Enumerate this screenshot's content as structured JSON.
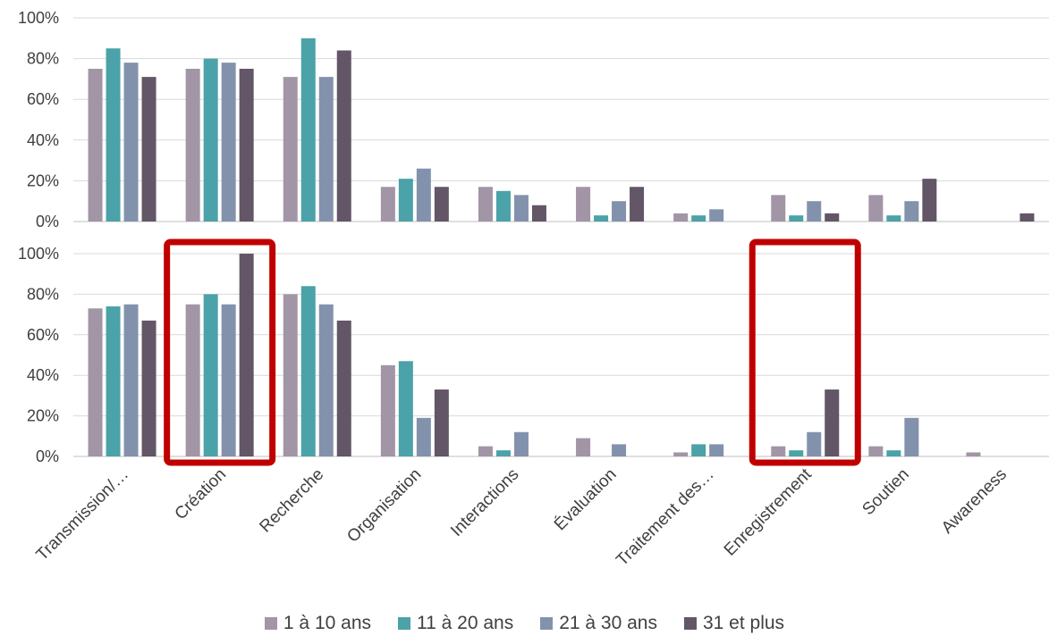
{
  "chart_data": {
    "type": "bar",
    "categories": [
      "Transmission/…",
      "Création",
      "Recherche",
      "Organisation",
      "Interactions",
      "Évaluation",
      "Traitement des…",
      "Enregistrement",
      "Soutien",
      "Awareness"
    ],
    "legend": {
      "position": "bottom"
    },
    "colors": [
      "#a295a6",
      "#4ba2a8",
      "#8392ac",
      "#625667"
    ],
    "highlight_color": "#c00000",
    "highlighted_categories": [
      "Création",
      "Enregistrement"
    ],
    "panels": [
      {
        "ylim": [
          0,
          100
        ],
        "yticks": [
          "0%",
          "20%",
          "40%",
          "60%",
          "80%",
          "100%"
        ],
        "series": [
          {
            "name": "1 à 10 ans",
            "values": [
              75,
              75,
              71,
              17,
              17,
              17,
              4,
              13,
              13,
              0
            ]
          },
          {
            "name": "11 à 20 ans",
            "values": [
              85,
              80,
              90,
              21,
              15,
              3,
              3,
              3,
              3,
              0
            ]
          },
          {
            "name": "21 à 30 ans",
            "values": [
              78,
              78,
              71,
              26,
              13,
              10,
              6,
              10,
              10,
              0
            ]
          },
          {
            "name": "31 et plus",
            "values": [
              71,
              75,
              84,
              17,
              8,
              17,
              0,
              4,
              21,
              4
            ]
          }
        ]
      },
      {
        "ylim": [
          0,
          100
        ],
        "yticks": [
          "0%",
          "20%",
          "40%",
          "60%",
          "80%",
          "100%"
        ],
        "series": [
          {
            "name": "1 à 10 ans",
            "values": [
              73,
              75,
              80,
              45,
              5,
              9,
              2,
              5,
              5,
              2
            ]
          },
          {
            "name": "11 à 20 ans",
            "values": [
              74,
              80,
              84,
              47,
              3,
              0,
              6,
              3,
              3,
              0
            ]
          },
          {
            "name": "21 à 30 ans",
            "values": [
              75,
              75,
              75,
              19,
              12,
              6,
              6,
              12,
              19,
              0
            ]
          },
          {
            "name": "31 et plus",
            "values": [
              67,
              100,
              67,
              33,
              0,
              0,
              0,
              33,
              0,
              0
            ]
          }
        ]
      }
    ]
  }
}
